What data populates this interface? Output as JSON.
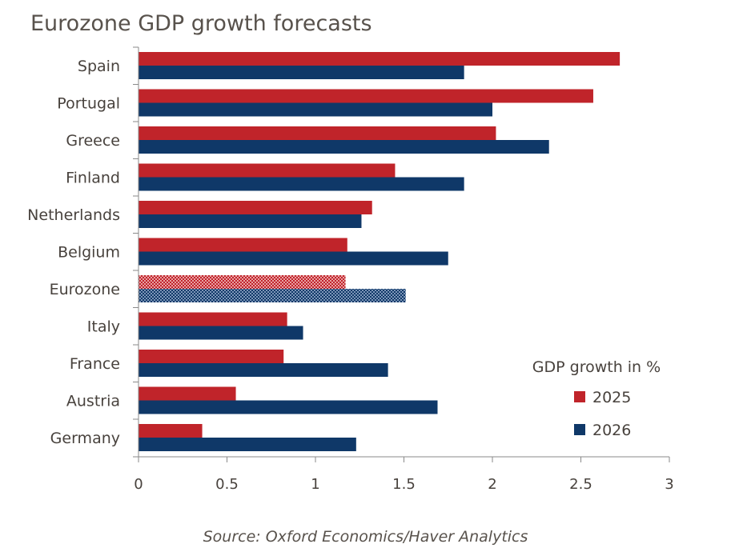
{
  "chart_data": {
    "type": "bar",
    "orientation": "horizontal",
    "title": "Eurozone GDP growth forecasts",
    "source": "Source: Oxford Economics/Haver Analytics",
    "legend_title": "GDP growth in %",
    "legend_position": "right",
    "categories": [
      "Spain",
      "Portugal",
      "Greece",
      "Finland",
      "Netherlands",
      "Belgium",
      "Eurozone",
      "Italy",
      "France",
      "Austria",
      "Germany"
    ],
    "highlight_category": "Eurozone",
    "series": [
      {
        "name": "2025",
        "color": "#c0242a",
        "values": [
          2.72,
          2.57,
          2.02,
          1.45,
          1.32,
          1.18,
          1.17,
          0.84,
          0.82,
          0.55,
          0.36
        ]
      },
      {
        "name": "2026",
        "color": "#0f3868",
        "values": [
          1.84,
          2.0,
          2.32,
          1.84,
          1.26,
          1.75,
          1.51,
          0.93,
          1.41,
          1.69,
          1.23
        ]
      }
    ],
    "xlim": [
      0,
      3
    ],
    "xticks": [
      "0",
      "0.5",
      "1",
      "1.5",
      "2",
      "2.5",
      "3"
    ],
    "tick_values": [
      0,
      0.5,
      1,
      1.5,
      2,
      2.5,
      3
    ],
    "xlabel": "",
    "ylabel": "",
    "grid": false
  }
}
